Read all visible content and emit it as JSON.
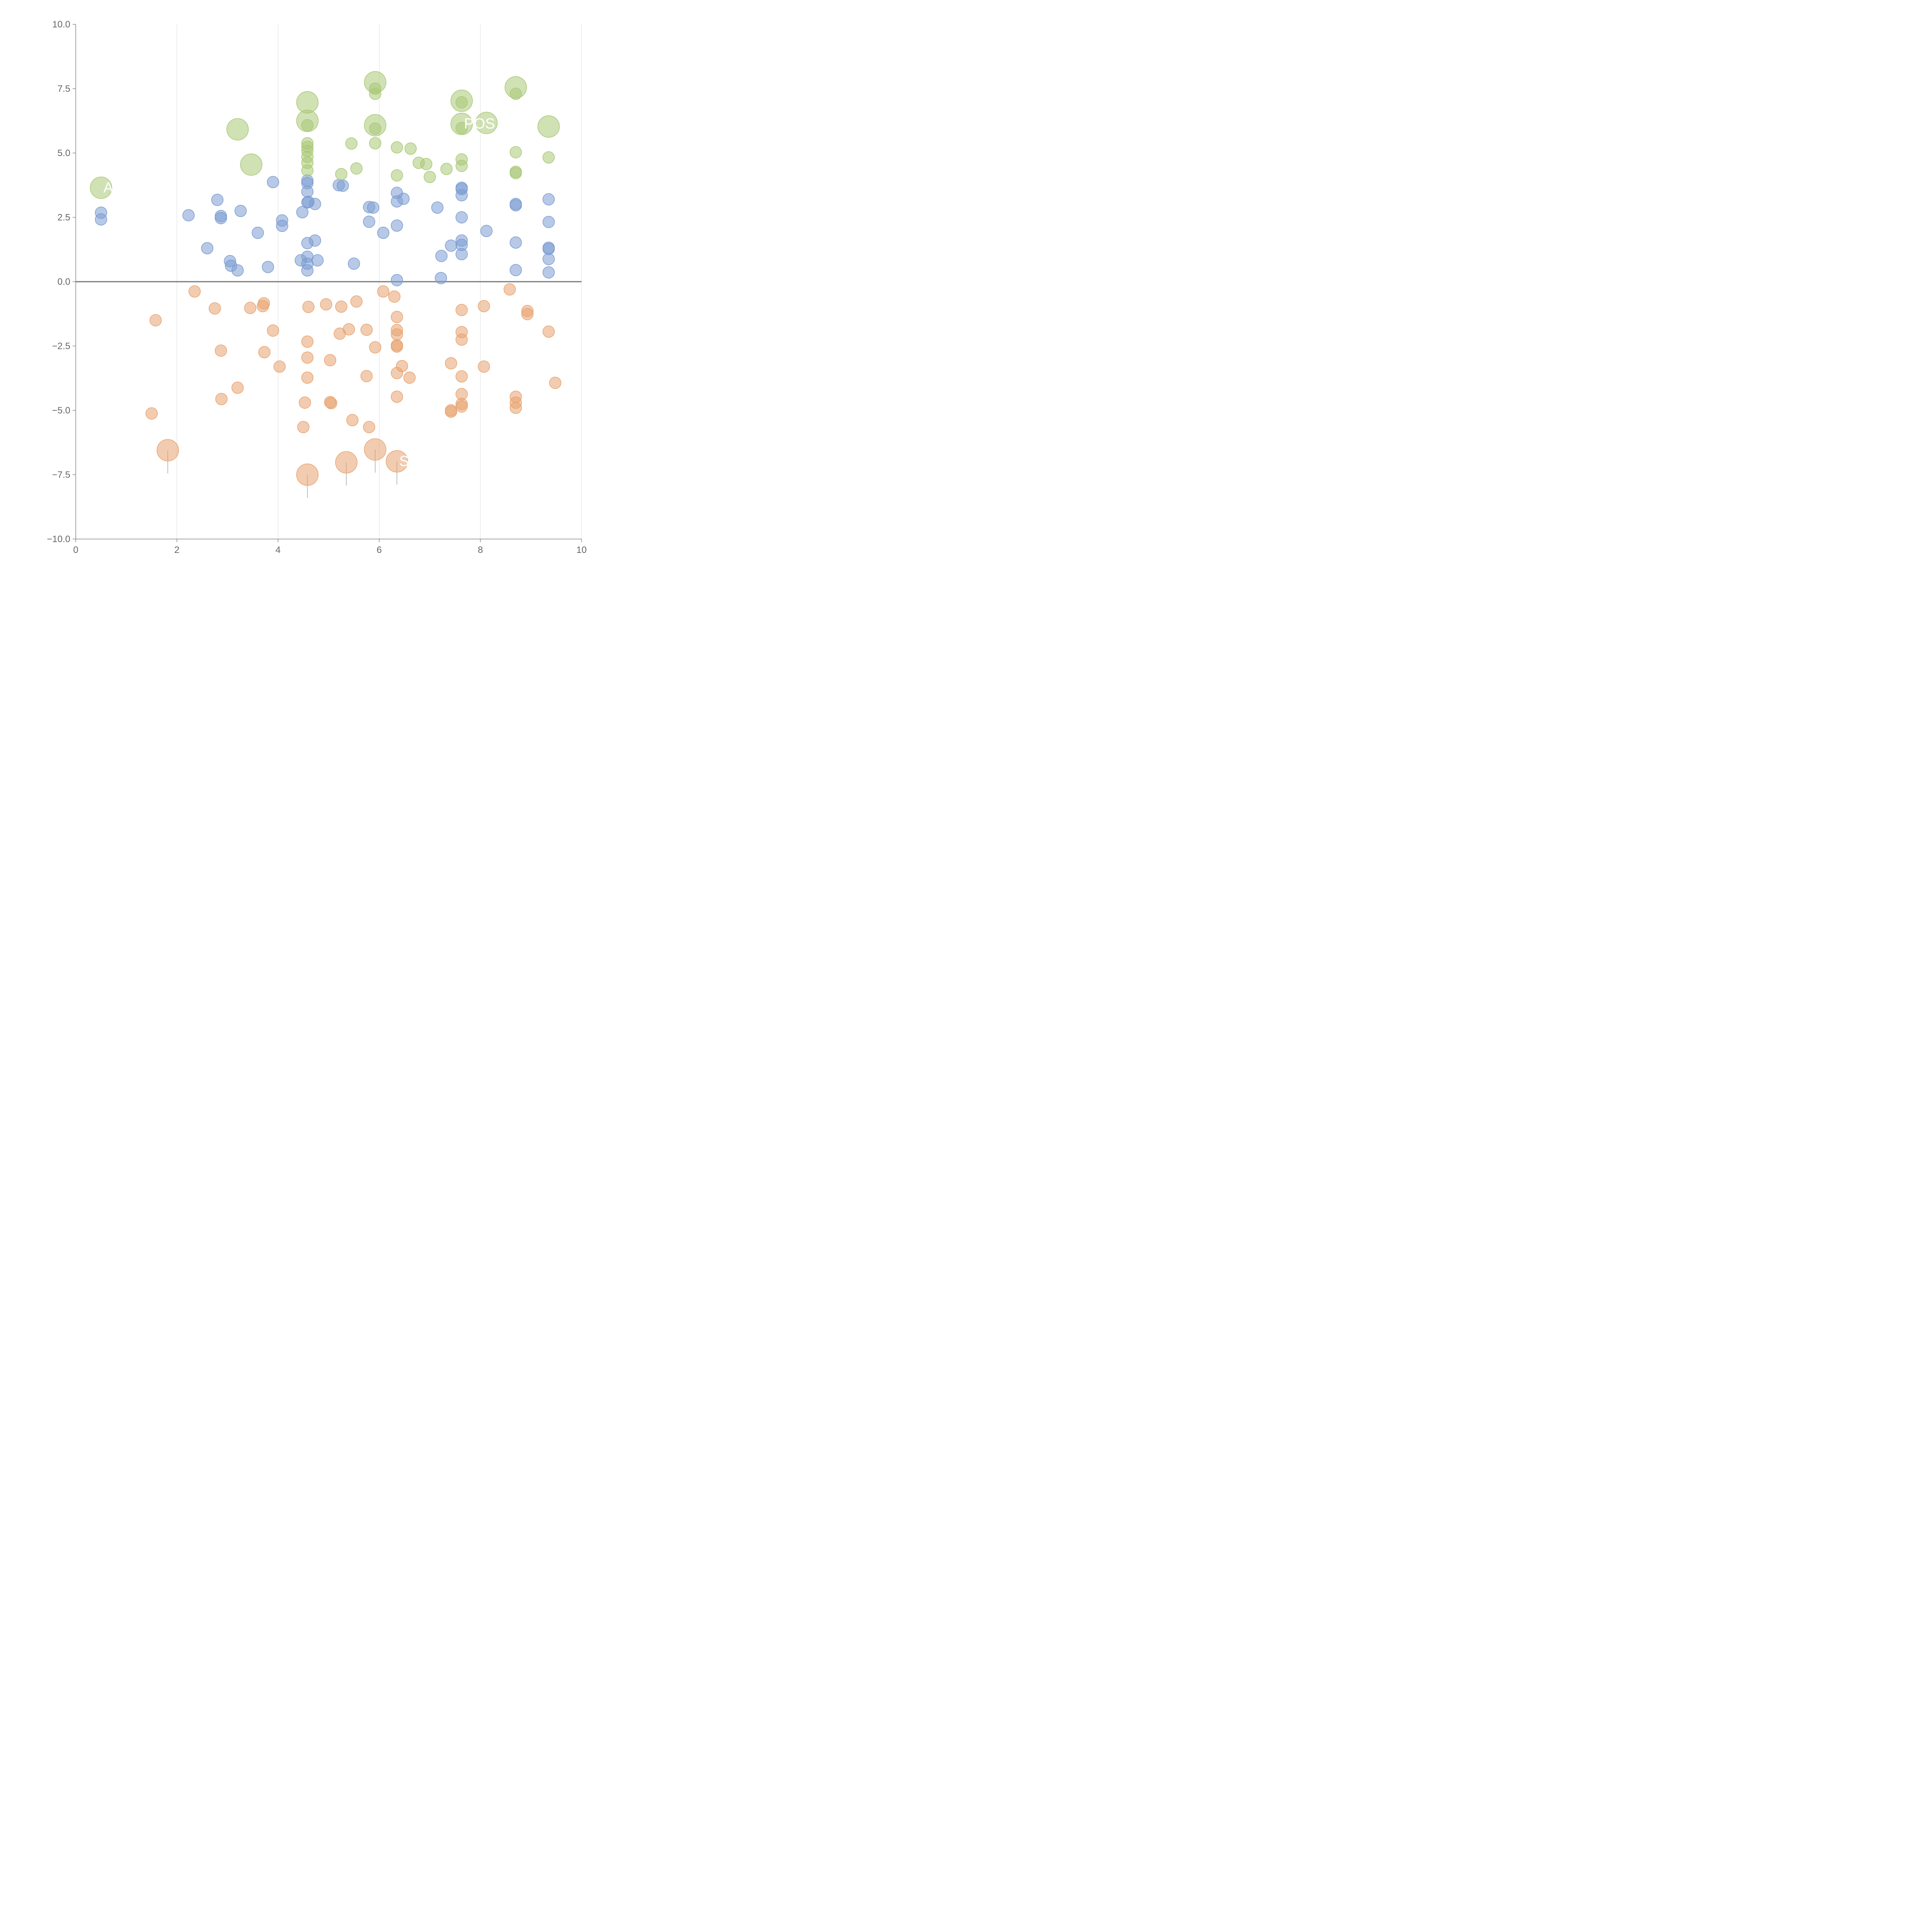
{
  "chart_data": {
    "type": "scatter",
    "title": "",
    "xlabel": "",
    "ylabel": "",
    "xlim": [
      0,
      10
    ],
    "ylim": [
      -10,
      10
    ],
    "x_ticks": [
      "0",
      "2",
      "4",
      "6",
      "8",
      "10"
    ],
    "y_ticks": [
      "10.0",
      "7.5",
      "5.0",
      "2.5",
      "0.0",
      "−2.5",
      "−5.0",
      "−7.5",
      "−10.0"
    ],
    "grid": "vertical",
    "colors": {
      "blue": "#7b9cd1",
      "orange": "#e8a370",
      "green": "#a9c876"
    },
    "series": [
      {
        "name": "blue",
        "color": "#7b9cd1",
        "points": [
          [
            0.5,
            2.68
          ],
          [
            0.5,
            2.42
          ],
          [
            2.23,
            2.58
          ],
          [
            2.6,
            1.3
          ],
          [
            2.8,
            3.18
          ],
          [
            2.87,
            2.55
          ],
          [
            2.87,
            2.47
          ],
          [
            3.05,
            0.8
          ],
          [
            3.07,
            0.62
          ],
          [
            3.2,
            0.44
          ],
          [
            3.26,
            2.75
          ],
          [
            3.6,
            1.9
          ],
          [
            3.8,
            0.57
          ],
          [
            3.9,
            3.87
          ],
          [
            4.08,
            2.38
          ],
          [
            4.08,
            2.17
          ],
          [
            4.45,
            0.83
          ],
          [
            4.48,
            2.7
          ],
          [
            4.58,
            3.93
          ],
          [
            4.58,
            3.83
          ],
          [
            4.58,
            3.5
          ],
          [
            4.58,
            3.08
          ],
          [
            4.6,
            3.1
          ],
          [
            4.58,
            1.5
          ],
          [
            4.58,
            0.97
          ],
          [
            4.58,
            0.7
          ],
          [
            4.58,
            0.44
          ],
          [
            4.73,
            3.02
          ],
          [
            4.73,
            1.6
          ],
          [
            4.78,
            0.83
          ],
          [
            5.2,
            3.75
          ],
          [
            5.28,
            3.73
          ],
          [
            5.5,
            0.7
          ],
          [
            5.8,
            2.9
          ],
          [
            5.8,
            2.33
          ],
          [
            5.88,
            2.88
          ],
          [
            6.08,
            1.9
          ],
          [
            6.35,
            3.45
          ],
          [
            6.35,
            3.12
          ],
          [
            6.35,
            2.18
          ],
          [
            6.35,
            0.06
          ],
          [
            6.48,
            3.22
          ],
          [
            7.15,
            2.88
          ],
          [
            7.22,
            0.14
          ],
          [
            7.23,
            1.0
          ],
          [
            7.42,
            1.4
          ],
          [
            7.63,
            3.65
          ],
          [
            7.63,
            3.6
          ],
          [
            7.63,
            3.36
          ],
          [
            7.63,
            2.5
          ],
          [
            7.63,
            1.6
          ],
          [
            7.63,
            1.43
          ],
          [
            7.63,
            1.07
          ],
          [
            8.12,
            1.97
          ],
          [
            8.7,
            3.02
          ],
          [
            8.7,
            2.97
          ],
          [
            8.7,
            1.52
          ],
          [
            8.7,
            0.45
          ],
          [
            9.35,
            3.2
          ],
          [
            9.35,
            2.32
          ],
          [
            9.35,
            1.32
          ],
          [
            9.35,
            1.27
          ],
          [
            9.35,
            0.88
          ],
          [
            9.35,
            0.36
          ]
        ]
      },
      {
        "name": "orange",
        "color": "#e8a370",
        "points": [
          [
            1.5,
            -5.12
          ],
          [
            1.58,
            -1.5
          ],
          [
            2.35,
            -0.38
          ],
          [
            2.75,
            -1.04
          ],
          [
            2.87,
            -2.68
          ],
          [
            2.88,
            -4.56
          ],
          [
            3.2,
            -4.12
          ],
          [
            3.45,
            -1.02
          ],
          [
            3.7,
            -0.95
          ],
          [
            3.72,
            -0.84
          ],
          [
            3.73,
            -2.74
          ],
          [
            3.9,
            -1.9
          ],
          [
            4.03,
            -3.3
          ],
          [
            4.53,
            -4.7
          ],
          [
            4.5,
            -5.65
          ],
          [
            4.58,
            -2.33
          ],
          [
            4.58,
            -2.95
          ],
          [
            4.58,
            -3.73
          ],
          [
            4.6,
            -0.98
          ],
          [
            4.95,
            -0.88
          ],
          [
            5.03,
            -3.05
          ],
          [
            5.03,
            -4.68
          ],
          [
            5.05,
            -4.72
          ],
          [
            5.22,
            -2.02
          ],
          [
            5.25,
            -0.97
          ],
          [
            5.4,
            -1.85
          ],
          [
            5.47,
            -5.38
          ],
          [
            5.55,
            -0.77
          ],
          [
            5.75,
            -1.87
          ],
          [
            5.75,
            -3.67
          ],
          [
            5.8,
            -5.65
          ],
          [
            5.92,
            -2.55
          ],
          [
            6.08,
            -0.38
          ],
          [
            6.3,
            -0.58
          ],
          [
            6.35,
            -1.37
          ],
          [
            6.35,
            -1.88
          ],
          [
            6.35,
            -2.05
          ],
          [
            6.35,
            -2.47
          ],
          [
            6.35,
            -2.52
          ],
          [
            6.35,
            -3.55
          ],
          [
            6.35,
            -4.47
          ],
          [
            6.45,
            -3.28
          ],
          [
            6.6,
            -3.73
          ],
          [
            7.42,
            -3.17
          ],
          [
            7.42,
            -5.0
          ],
          [
            7.42,
            -5.05
          ],
          [
            7.63,
            -1.1
          ],
          [
            7.63,
            -1.96
          ],
          [
            7.63,
            -2.25
          ],
          [
            7.63,
            -3.68
          ],
          [
            7.63,
            -4.37
          ],
          [
            7.63,
            -4.75
          ],
          [
            7.63,
            -4.85
          ],
          [
            8.07,
            -0.95
          ],
          [
            8.07,
            -3.3
          ],
          [
            8.58,
            -0.3
          ],
          [
            8.7,
            -4.47
          ],
          [
            8.7,
            -4.7
          ],
          [
            8.7,
            -4.9
          ],
          [
            8.93,
            -1.14
          ],
          [
            8.93,
            -1.26
          ],
          [
            9.35,
            -1.94
          ],
          [
            9.48,
            -3.93
          ]
        ]
      },
      {
        "name": "green",
        "color": "#a9c876",
        "points": [
          [
            4.58,
            5.38
          ],
          [
            4.58,
            5.24
          ],
          [
            4.58,
            5.08
          ],
          [
            4.58,
            4.85
          ],
          [
            4.58,
            4.62
          ],
          [
            4.58,
            4.32
          ],
          [
            4.58,
            6.08
          ],
          [
            5.25,
            4.18
          ],
          [
            5.45,
            5.37
          ],
          [
            5.55,
            4.4
          ],
          [
            5.92,
            7.5
          ],
          [
            5.92,
            7.3
          ],
          [
            5.92,
            5.95
          ],
          [
            5.92,
            5.38
          ],
          [
            6.35,
            5.22
          ],
          [
            6.35,
            4.13
          ],
          [
            6.62,
            5.17
          ],
          [
            6.78,
            4.62
          ],
          [
            6.93,
            4.57
          ],
          [
            7.0,
            4.07
          ],
          [
            7.33,
            4.38
          ],
          [
            7.63,
            6.97
          ],
          [
            7.63,
            5.97
          ],
          [
            7.63,
            4.75
          ],
          [
            7.63,
            4.5
          ],
          [
            8.7,
            7.3
          ],
          [
            8.7,
            5.03
          ],
          [
            8.7,
            4.27
          ],
          [
            8.7,
            4.22
          ],
          [
            9.35,
            4.83
          ]
        ]
      }
    ],
    "highlighted_points": [
      {
        "series": "green",
        "x": 0.5,
        "y": 3.65,
        "label": "ATO"
      },
      {
        "series": "green",
        "x": 3.2,
        "y": 5.92,
        "label": ""
      },
      {
        "series": "green",
        "x": 3.47,
        "y": 4.55,
        "label": ""
      },
      {
        "series": "green",
        "x": 4.58,
        "y": 6.97,
        "label": ""
      },
      {
        "series": "green",
        "x": 4.58,
        "y": 6.25,
        "label": ""
      },
      {
        "series": "green",
        "x": 5.92,
        "y": 7.75,
        "label": ""
      },
      {
        "series": "green",
        "x": 5.92,
        "y": 6.08,
        "label": ""
      },
      {
        "series": "green",
        "x": 7.63,
        "y": 7.03,
        "label": ""
      },
      {
        "series": "green",
        "x": 7.63,
        "y": 6.13,
        "label": "POS"
      },
      {
        "series": "green",
        "x": 8.12,
        "y": 6.17,
        "label": ""
      },
      {
        "series": "green",
        "x": 8.7,
        "y": 7.55,
        "label": ""
      },
      {
        "series": "green",
        "x": 9.35,
        "y": 6.03,
        "label": ""
      },
      {
        "series": "orange",
        "x": 1.82,
        "y": -6.55,
        "label": ""
      },
      {
        "series": "orange",
        "x": 4.58,
        "y": -7.5,
        "label": ""
      },
      {
        "series": "orange",
        "x": 5.35,
        "y": -7.02,
        "label": ""
      },
      {
        "series": "orange",
        "x": 5.92,
        "y": -6.52,
        "label": ""
      },
      {
        "series": "orange",
        "x": 6.35,
        "y": -6.98,
        "label": "SUI"
      }
    ]
  }
}
